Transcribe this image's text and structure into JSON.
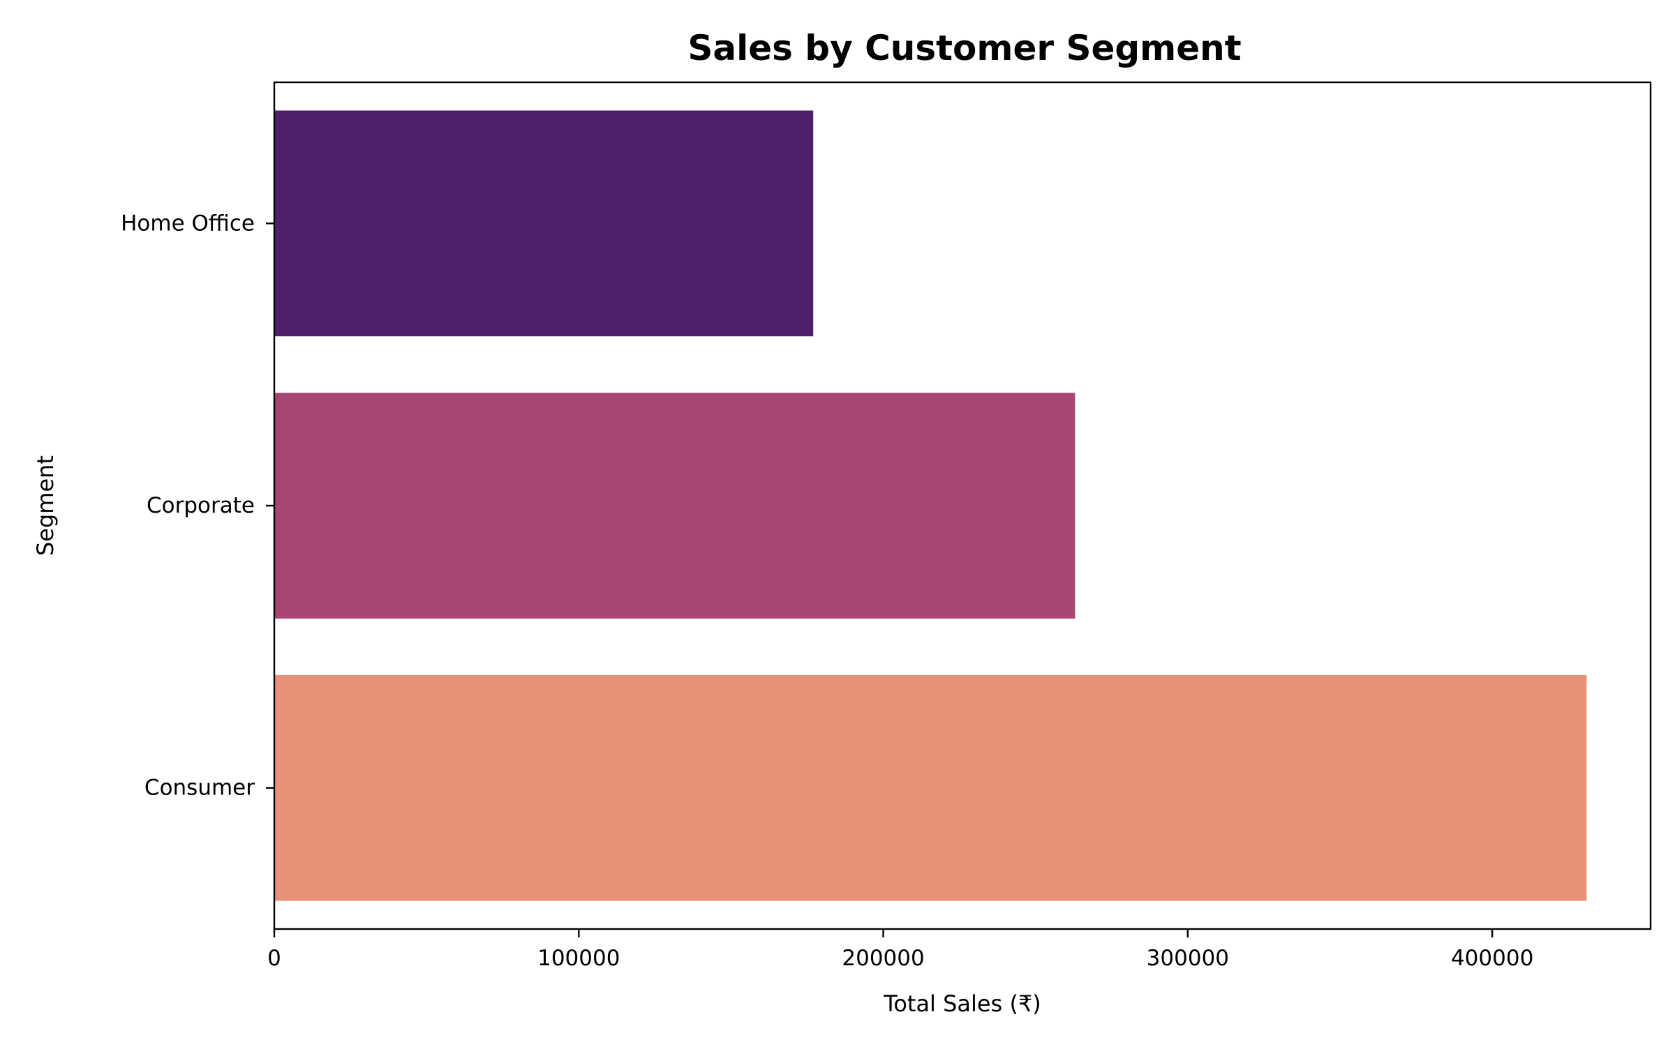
{
  "chart_data": {
    "type": "bar",
    "orientation": "horizontal",
    "title": "Sales by Customer Segment",
    "xlabel": "Total Sales (₹)",
    "ylabel": "Segment",
    "categories": [
      "Home Office",
      "Corporate",
      "Consumer"
    ],
    "values": [
      177000,
      263000,
      431000
    ],
    "colors": [
      "#4f1f6b",
      "#a64675",
      "#e79176"
    ],
    "xlim": [
      0,
      452000
    ],
    "xticks": [
      0,
      100000,
      200000,
      300000,
      400000
    ],
    "grid": false,
    "legend": "none"
  }
}
